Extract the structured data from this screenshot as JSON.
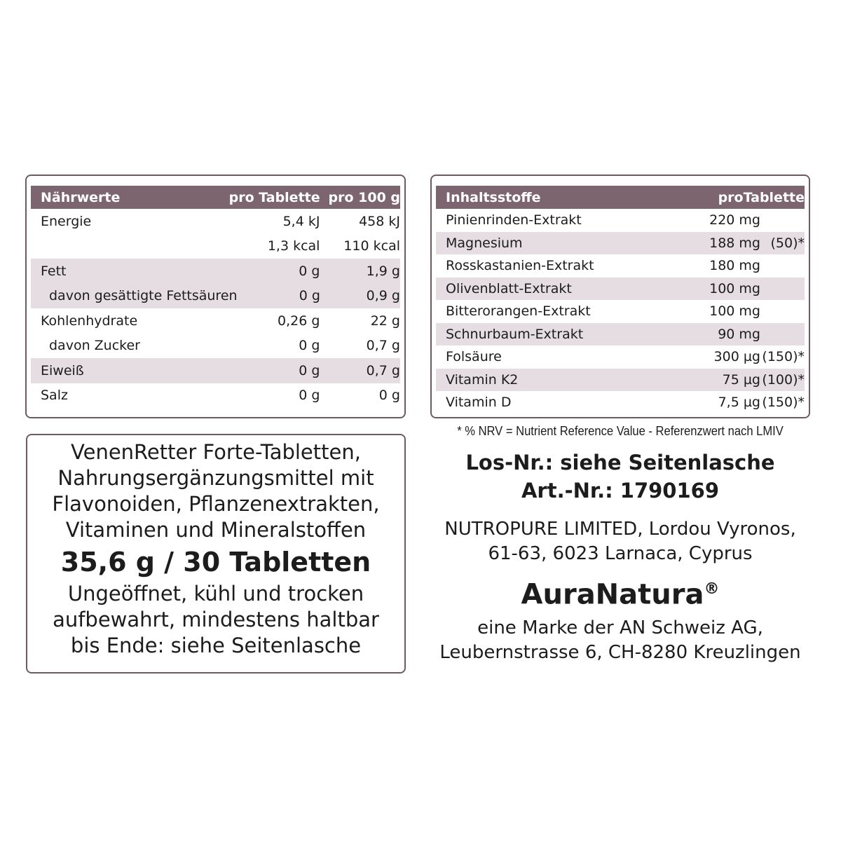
{
  "nutrition": {
    "headers": [
      "Nährwerte",
      "pro Tablette",
      "pro 100 g"
    ],
    "rows": [
      {
        "label": "Energie",
        "per_tablet": "5,4 kJ",
        "per_100g": "458 kJ",
        "shaded": false,
        "sub": false
      },
      {
        "label": "",
        "per_tablet": "1,3 kcal",
        "per_100g": "110 kcal",
        "shaded": false,
        "sub": false
      },
      {
        "label": "Fett",
        "per_tablet": "0 g",
        "per_100g": "1,9 g",
        "shaded": true,
        "sub": false
      },
      {
        "label": "davon gesättigte Fettsäuren",
        "per_tablet": "0 g",
        "per_100g": "0,9 g",
        "shaded": true,
        "sub": true
      },
      {
        "label": "Kohlenhydrate",
        "per_tablet": "0,26 g",
        "per_100g": "22 g",
        "shaded": false,
        "sub": false
      },
      {
        "label": "davon Zucker",
        "per_tablet": "0 g",
        "per_100g": "0,7 g",
        "shaded": false,
        "sub": true
      },
      {
        "label": "Eiweiß",
        "per_tablet": "0 g",
        "per_100g": "0,7 g",
        "shaded": true,
        "sub": false
      },
      {
        "label": "Salz",
        "per_tablet": "0 g",
        "per_100g": "0 g",
        "shaded": false,
        "sub": false
      }
    ]
  },
  "ingredients": {
    "headers": [
      "Inhaltsstoffe",
      "pro",
      "Tablette"
    ],
    "rows": [
      {
        "label": "Pinienrinden-Extrakt",
        "amount": "220 mg",
        "nrv": "",
        "shaded": false
      },
      {
        "label": "Magnesium",
        "amount": "188 mg",
        "nrv": "(50)*",
        "shaded": true
      },
      {
        "label": "Rosskastanien-Extrakt",
        "amount": "180 mg",
        "nrv": "",
        "shaded": false
      },
      {
        "label": "Olivenblatt-Extrakt",
        "amount": "100 mg",
        "nrv": "",
        "shaded": true
      },
      {
        "label": "Bitterorangen-Extrakt",
        "amount": "100 mg",
        "nrv": "",
        "shaded": false
      },
      {
        "label": "Schnurbaum-Extrakt",
        "amount": "90 mg",
        "nrv": "",
        "shaded": true
      },
      {
        "label": "Folsäure",
        "amount": "300 µg",
        "nrv": "(150)*",
        "shaded": false
      },
      {
        "label": "Vitamin K2",
        "amount": "75 µg",
        "nrv": "(100)*",
        "shaded": true
      },
      {
        "label": "Vitamin D",
        "amount": "7,5 µg",
        "nrv": "(150)*",
        "shaded": false
      }
    ],
    "footnote": "* % NRV = Nutrient Reference Value - Referenzwert nach LMIV"
  },
  "product": {
    "description_lines": [
      "VenenRetter Forte-Tabletten,",
      "Nahrungsergänzungsmittel mit",
      "Flavonoiden, Pflanzenextrakten,",
      "Vitaminen und Mineralstoffen"
    ],
    "quantity": "35,6 g / 30 Tabletten",
    "storage_lines": [
      "Ungeöffnet, kühl und trocken",
      "aufbewahrt, mindestens haltbar",
      "bis Ende: siehe Seitenlasche"
    ]
  },
  "info": {
    "lot": "Los-Nr.: siehe Seitenlasche",
    "article": "Art.-Nr.: 1790169",
    "manufacturer_lines": [
      "NUTROPURE LIMITED, Lordou Vyronos,",
      "61-63, 6023 Larnaca, Cyprus"
    ],
    "brand": "AuraNatura",
    "brand_mark": "®",
    "brand_owner_lines": [
      "eine Marke der AN Schweiz AG,",
      "Leubernstrasse 6, CH-8280 Kreuzlingen"
    ]
  },
  "colors": {
    "header": "#7d6570",
    "stripe": "#e6dde2",
    "border": "#6f5a64"
  }
}
